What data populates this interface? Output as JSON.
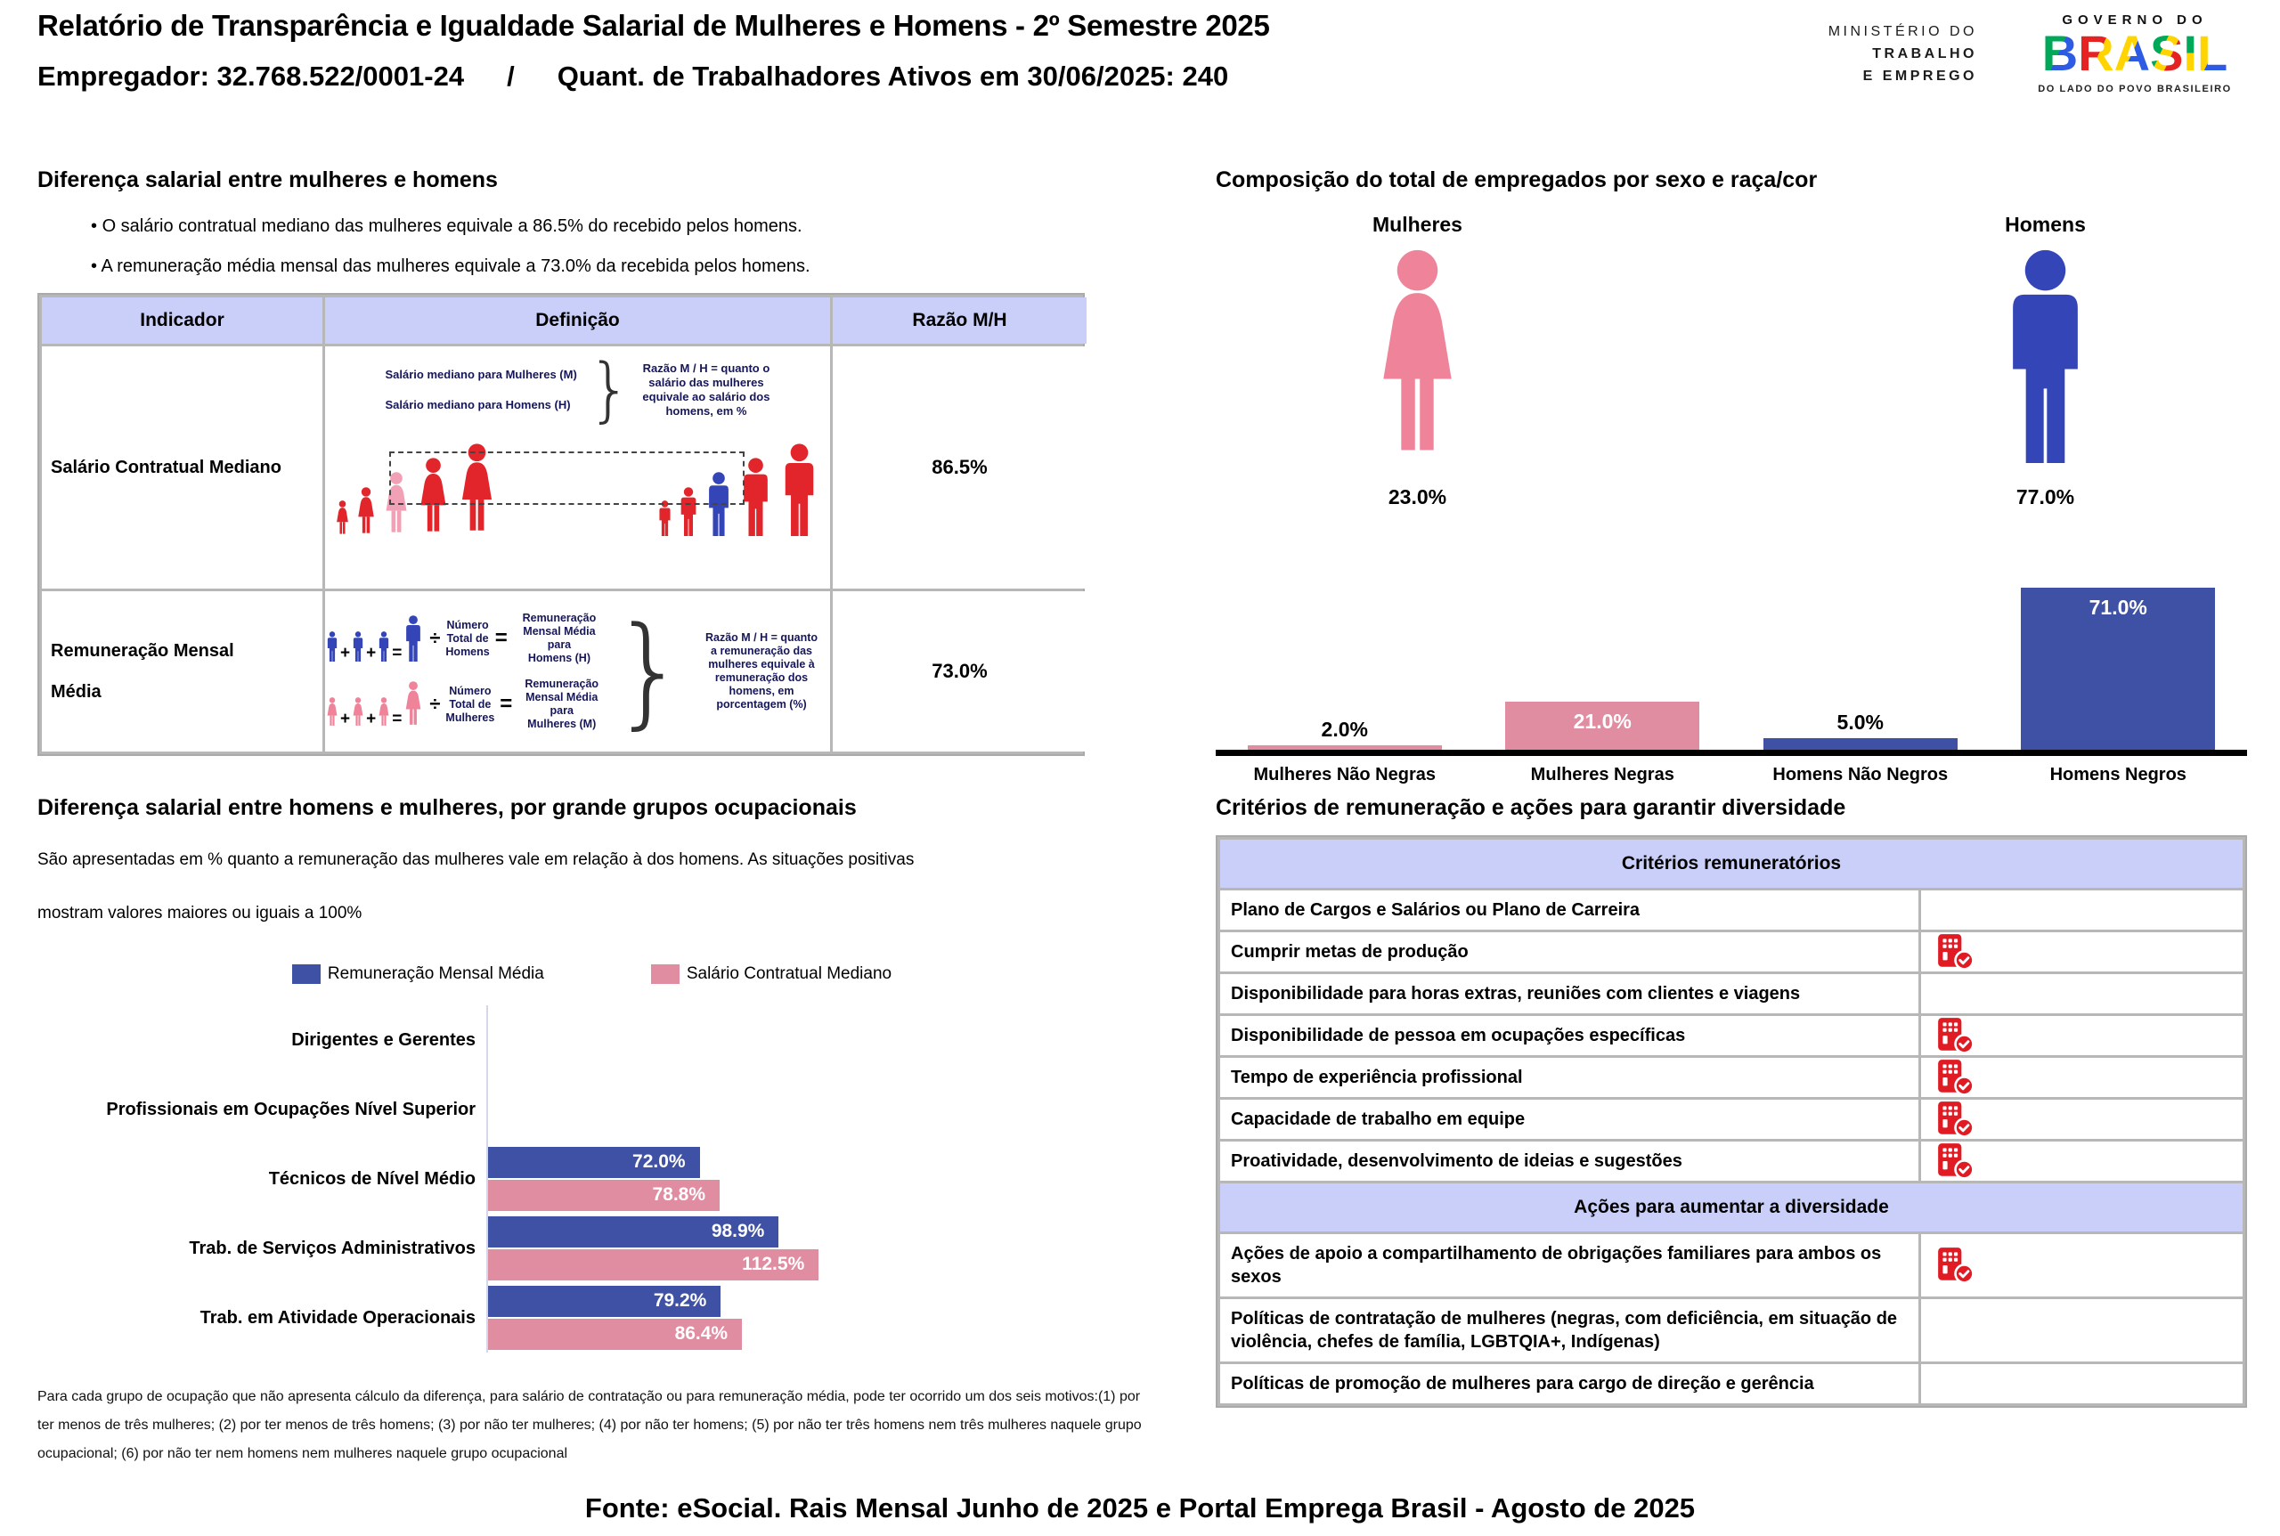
{
  "colors": {
    "bar_blue": "#3F51A5",
    "bar_pink": "#E08DA2",
    "icon_blue": "#3445B8",
    "icon_pink": "#EE8399",
    "figure_red": "#E2242B",
    "figure_light_pink": "#F2A0B5",
    "header_purple": "#C9CFF8",
    "check_red": "#E01B24"
  },
  "header": {
    "title": "Relatório de Transparência e Igualdade Salarial de Mulheres e Homens - 2º Semestre 2025",
    "employer": "Empregador: 32.768.522/0001-24",
    "separator": "/",
    "workers": "Quant. de Trabalhadores Ativos em 30/06/2025: 240",
    "ministry": {
      "line1": "MINISTÉRIO DO",
      "line2": "TRABALHO",
      "line3": "E EMPREGO"
    },
    "gov_logo": {
      "top": "GOVERNO DO",
      "name": "BRASIL",
      "tagline": "DO LADO DO POVO BRASILEIRO"
    }
  },
  "salary_gap": {
    "heading": "Diferença salarial entre mulheres e homens",
    "bullets": [
      "O salário contratual mediano das mulheres equivale a 86.5% do recebido pelos homens.",
      "A remuneração média mensal das mulheres equivale a 73.0% da recebida pelos homens."
    ],
    "table": {
      "headers": [
        "Indicador",
        "Definição",
        "Razão M/H"
      ],
      "rows": [
        {
          "indicator": "Salário Contratual Mediano",
          "ratio": "86.5%",
          "diagram": {
            "women_line": "Salário mediano para Mulheres (M)",
            "men_line": "Salário mediano para Homens (H)",
            "explanation": "Razão M / H = quanto o\nsalário das mulheres\nequivale ao salário dos\nhomens, em %",
            "women_figures": [
              "red",
              "red",
              "light_pink",
              "red",
              "red"
            ],
            "men_figures": [
              "red",
              "red",
              "blue",
              "red",
              "red"
            ]
          }
        },
        {
          "indicator": "Remuneração Mensal Média",
          "ratio": "73.0%",
          "diagram": {
            "men": {
              "divisor": "Número\nTotal de\nHomens",
              "result": "Remuneração\nMensal Média para\nHomens (H)"
            },
            "women": {
              "divisor": "Número\nTotal de\nMulheres",
              "result": "Remuneração\nMensal Média para\nMulheres (M)"
            },
            "explanation": "Razão M / H = quanto\na remuneração das\nmulheres equivale à\nremuneração dos\nhomens, em\nporcentagem (%)"
          }
        }
      ]
    }
  },
  "composition": {
    "heading": "Composição do total de empregados por sexo e raça/cor",
    "groups": [
      {
        "label": "Mulheres",
        "value": "23.0%"
      },
      {
        "label": "Homens",
        "value": "77.0%"
      }
    ]
  },
  "occupational": {
    "heading": "Diferença salarial entre homens e mulheres, por grande grupos ocupacionais",
    "description_line1": "São apresentadas em % quanto a remuneração das mulheres vale em relação à dos homens. As situações positivas",
    "description_line2": "mostram valores maiores ou iguais a 100%",
    "legend": [
      "Remuneração Mensal Média",
      "Salário Contratual Mediano"
    ],
    "footnote": "Para cada grupo de ocupação que não apresenta cálculo da diferença, para salário de contratação ou para remuneração média, pode ter ocorrido um dos seis motivos:(1) por ter menos de três mulheres; (2) por ter menos de três homens; (3) por não ter mulheres; (4) por não ter homens; (5) por não ter três homens nem três mulheres naquele grupo ocupacional; (6) por não ter nem homens nem mulheres naquele grupo ocupacional"
  },
  "criteria": {
    "heading": "Critérios de remuneração e ações para garantir diversidade",
    "sections": [
      {
        "header": "Critérios remuneratórios",
        "rows": [
          {
            "label": "Plano de Cargos e Salários ou Plano de Carreira",
            "checked": false
          },
          {
            "label": "Cumprir metas de produção",
            "checked": true
          },
          {
            "label": "Disponibilidade para horas extras, reuniões com clientes e viagens",
            "checked": false
          },
          {
            "label": "Disponibilidade de pessoa em ocupações específicas",
            "checked": true
          },
          {
            "label": "Tempo de experiência profissional",
            "checked": true
          },
          {
            "label": "Capacidade de trabalho em equipe",
            "checked": true
          },
          {
            "label": "Proatividade, desenvolvimento de ideias e sugestões",
            "checked": true
          }
        ]
      },
      {
        "header": "Ações para aumentar a diversidade",
        "rows": [
          {
            "label": "Ações de apoio a compartilhamento de obrigações familiares para ambos os sexos",
            "checked": true
          },
          {
            "label": "Políticas de contratação de mulheres (negras, com deficiência, em situação de violência, chefes de família, LGBTQIA+, Indígenas)",
            "checked": false
          },
          {
            "label": "Políticas de promoção de mulheres para cargo de direção e gerência",
            "checked": false
          }
        ]
      }
    ]
  },
  "footer": {
    "source": "Fonte: eSocial. Rais Mensal Junho de 2025 e Portal Emprega Brasil - Agosto de 2025"
  },
  "chart_data": [
    {
      "type": "bar",
      "title": "Composição do total de empregados por sexo e raça/cor",
      "categories": [
        "Mulheres Não Negras",
        "Mulheres Negras",
        "Homens Não Negros",
        "Homens Negros"
      ],
      "values": [
        2.0,
        21.0,
        5.0,
        71.0
      ],
      "unit": "%",
      "colors": [
        "pink",
        "pink",
        "blue",
        "blue"
      ],
      "summary": {
        "Mulheres": 23.0,
        "Homens": 77.0
      },
      "ylim": [
        0,
        80
      ],
      "grid": false
    },
    {
      "type": "bar",
      "orientation": "horizontal",
      "title": "Diferença salarial entre homens e mulheres, por grande grupos ocupacionais",
      "categories": [
        "Dirigentes e Gerentes",
        "Profissionais em Ocupações Nível Superior",
        "Técnicos de Nível Médio",
        "Trab. de Serviços Administrativos",
        "Trab. em Atividade Operacionais"
      ],
      "series": [
        {
          "name": "Remuneração Mensal Média",
          "color": "blue",
          "values": [
            null,
            null,
            72.0,
            98.9,
            79.2
          ]
        },
        {
          "name": "Salário Contratual Mediano",
          "color": "pink",
          "values": [
            null,
            null,
            78.8,
            112.5,
            86.4
          ]
        }
      ],
      "unit": "%",
      "xlim": [
        0,
        115
      ],
      "grid": false,
      "legend_position": "top"
    }
  ]
}
